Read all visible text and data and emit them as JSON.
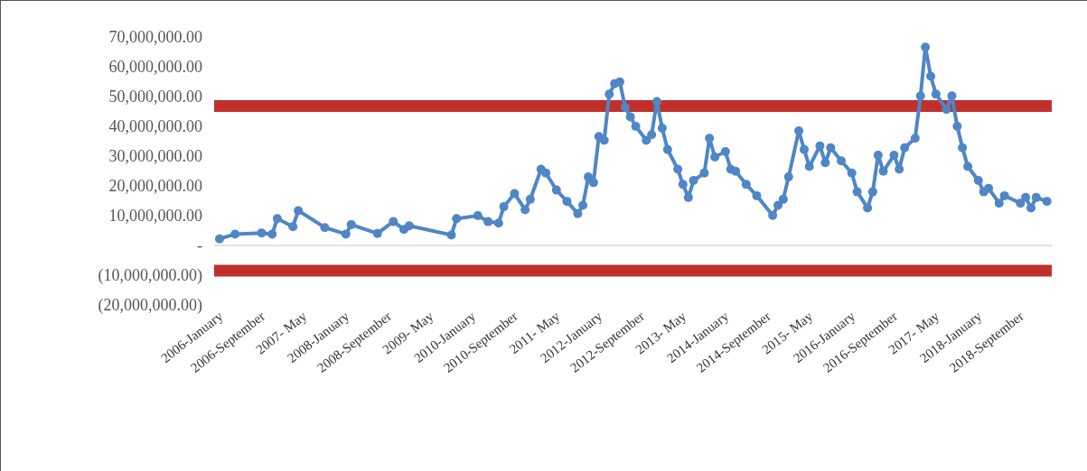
{
  "chart_data": {
    "type": "line",
    "x": [
      "2006-01",
      "2006-04",
      "2006-09",
      "2006-11",
      "2006-12",
      "2007-03",
      "2007-04",
      "2007-09",
      "2008-01",
      "2008-02",
      "2008-07",
      "2008-10",
      "2008-12",
      "2009-01",
      "2009-09",
      "2009-10",
      "2010-02",
      "2010-04",
      "2010-06",
      "2010-07",
      "2010-09",
      "2010-11",
      "2010-12",
      "2011-02",
      "2011-03",
      "2011-05",
      "2011-07",
      "2011-09",
      "2011-10",
      "2011-11",
      "2011-12",
      "2012-01",
      "2012-02",
      "2012-03",
      "2012-04",
      "2012-05",
      "2012-06",
      "2012-07",
      "2012-08",
      "2012-10",
      "2012-11",
      "2012-12",
      "2013-01",
      "2013-02",
      "2013-04",
      "2013-05",
      "2013-06",
      "2013-07",
      "2013-09",
      "2013-10",
      "2013-11",
      "2014-01",
      "2014-02",
      "2014-03",
      "2014-05",
      "2014-07",
      "2014-10",
      "2014-11",
      "2014-12",
      "2015-01",
      "2015-03",
      "2015-04",
      "2015-05",
      "2015-07",
      "2015-08",
      "2015-09",
      "2015-11",
      "2016-01",
      "2016-02",
      "2016-04",
      "2016-05",
      "2016-06",
      "2016-07",
      "2016-09",
      "2016-10",
      "2016-11",
      "2017-01",
      "2017-02",
      "2017-03",
      "2017-04",
      "2017-05",
      "2017-07",
      "2017-08",
      "2017-09",
      "2017-10",
      "2017-11",
      "2018-01",
      "2018-02",
      "2018-03",
      "2018-05",
      "2018-06",
      "2018-09",
      "2018-10",
      "2018-11",
      "2018-12",
      "2019-02"
    ],
    "series": [
      {
        "color": "#4f86c6",
        "values": [
          2200000,
          3800000,
          4200000,
          3800000,
          9000000,
          6300000,
          11700000,
          6000000,
          3800000,
          7000000,
          4000000,
          8000000,
          5400000,
          6600000,
          3500000,
          9000000,
          10000000,
          8000000,
          7500000,
          13000000,
          17400000,
          12000000,
          15500000,
          25600000,
          24300000,
          18600000,
          14800000,
          10700000,
          13500000,
          23000000,
          21100000,
          36600000,
          35300000,
          50800000,
          54300000,
          54900000,
          46400000,
          43200000,
          40000000,
          35300000,
          37200000,
          48300000,
          39400000,
          32200000,
          25600000,
          20500000,
          16100000,
          21800000,
          24300000,
          36000000,
          29700000,
          31500000,
          25600000,
          24900000,
          20500000,
          16700000,
          10100000,
          13500000,
          15500000,
          23000000,
          38500000,
          32200000,
          26500000,
          33400000,
          27800000,
          32800000,
          28400000,
          24300000,
          18000000,
          12600000,
          18000000,
          30300000,
          24900000,
          30300000,
          25600000,
          32800000,
          36000000,
          50200000,
          66600000,
          56800000,
          50800000,
          45700000,
          50200000,
          40000000,
          32800000,
          26500000,
          21800000,
          18000000,
          19200000,
          14200000,
          16700000,
          14200000,
          16100000,
          12600000,
          16100000,
          14800000
        ]
      }
    ],
    "xlim": [
      "2005-12",
      "2019-03"
    ],
    "xticks": [
      {
        "value": "2006-01",
        "label": "2006-January"
      },
      {
        "value": "2006-09",
        "label": "2006-September"
      },
      {
        "value": "2007-05",
        "label": "2007- May"
      },
      {
        "value": "2008-01",
        "label": "2008-January"
      },
      {
        "value": "2008-09",
        "label": "2008-September"
      },
      {
        "value": "2009-05",
        "label": "2009- May"
      },
      {
        "value": "2010-01",
        "label": "2010-January"
      },
      {
        "value": "2010-09",
        "label": "2010-September"
      },
      {
        "value": "2011-05",
        "label": "2011- May"
      },
      {
        "value": "2012-01",
        "label": "2012-January"
      },
      {
        "value": "2012-09",
        "label": "2012-September"
      },
      {
        "value": "2013-05",
        "label": "2013- May"
      },
      {
        "value": "2014-01",
        "label": "2014-January"
      },
      {
        "value": "2014-09",
        "label": "2014-September"
      },
      {
        "value": "2015-05",
        "label": "2015- May"
      },
      {
        "value": "2016-01",
        "label": "2016-January"
      },
      {
        "value": "2016-09",
        "label": "2016-September"
      },
      {
        "value": "2017-05",
        "label": "2017- May"
      },
      {
        "value": "2018-01",
        "label": "2018-January"
      },
      {
        "value": "2018-09",
        "label": "2018-September"
      }
    ],
    "ylim": [
      -20000000,
      70000000
    ],
    "yticks": [
      {
        "value": 70000000,
        "label": "70,000,000.00"
      },
      {
        "value": 60000000,
        "label": "60,000,000.00"
      },
      {
        "value": 50000000,
        "label": "50,000,000.00"
      },
      {
        "value": 40000000,
        "label": "40,000,000.00"
      },
      {
        "value": 30000000,
        "label": "30,000,000.00"
      },
      {
        "value": 20000000,
        "label": "20,000,000.00"
      },
      {
        "value": 10000000,
        "label": "10,000,000.00"
      },
      {
        "value": 0,
        "label": "-"
      },
      {
        "value": -10000000,
        "label": "(10,000,000.00)"
      },
      {
        "value": -20000000,
        "label": "(20,000,000.00)"
      }
    ],
    "ref_lines": [
      {
        "axis": "y",
        "value": 46800000,
        "color": "#c0302b"
      },
      {
        "axis": "y",
        "value": -8500000,
        "color": "#c0302b"
      },
      {
        "axis": "y",
        "value": 0,
        "color": "#d9d9d9"
      }
    ],
    "marker": "circle",
    "line_style": "solid"
  }
}
